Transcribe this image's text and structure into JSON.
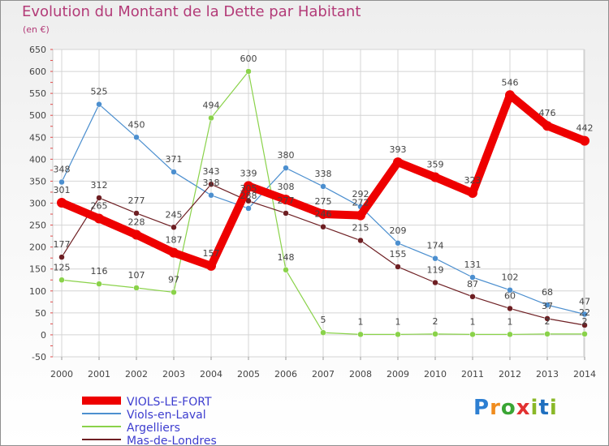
{
  "title": "Evolution du Montant de la Dette par Habitant",
  "unit": "(en €)",
  "logo_text": "Proxiti",
  "chart_data": {
    "type": "line",
    "title": "Evolution du Montant de la Dette par Habitant",
    "ylabel": "(en €)",
    "x": [
      "2000",
      "2001",
      "2002",
      "2003",
      "2004",
      "2005",
      "2006",
      "2007",
      "2008",
      "2009",
      "2010",
      "2011",
      "2012",
      "2013",
      "2014"
    ],
    "yticks": [
      -50,
      0,
      50,
      100,
      150,
      200,
      250,
      300,
      350,
      400,
      450,
      500,
      550,
      600,
      650
    ],
    "ylim": [
      -50,
      650
    ],
    "grid": true,
    "legend_position": "bottom-left",
    "series": [
      {
        "name": "VIOLS-LE-FORT",
        "color": "#ee0000",
        "values": [
          301,
          265,
          228,
          187,
          157,
          339,
          308,
          275,
          272,
          393,
          359,
          323,
          546,
          476,
          442
        ]
      },
      {
        "name": "Viols-en-Laval",
        "color": "#4c8fcf",
        "values": [
          348,
          525,
          450,
          371,
          318,
          288,
          380,
          338,
          292,
          209,
          174,
          131,
          102,
          68,
          47
        ]
      },
      {
        "name": "Argelliers",
        "color": "#8ad24a",
        "values": [
          125,
          116,
          107,
          97,
          494,
          600,
          148,
          5,
          1,
          1,
          2,
          1,
          1,
          2,
          2
        ]
      },
      {
        "name": "Mas-de-Londres",
        "color": "#6e1f23",
        "values": [
          177,
          312,
          277,
          245,
          343,
          305,
          277,
          246,
          215,
          155,
          119,
          87,
          60,
          37,
          22
        ]
      }
    ],
    "labels_shown": [
      [
        "301",
        "265",
        "228",
        "187",
        "157",
        "339",
        "308",
        "275",
        "272",
        "393",
        "359",
        "323",
        "546",
        "476",
        "442"
      ],
      [
        "348",
        "525",
        "450",
        "371",
        "318",
        "288",
        "380",
        "338",
        "292",
        "209",
        "174",
        "131",
        "102",
        "68",
        "47"
      ],
      [
        "125",
        "116",
        "107",
        "97",
        "494",
        "600",
        "148",
        "5",
        "1",
        "1",
        "2",
        "1",
        "1",
        "2",
        "2"
      ],
      [
        "177",
        "312",
        "277",
        "245",
        "343",
        "305",
        "277",
        "246",
        "215",
        "155",
        "119",
        "87",
        "60",
        "37",
        "22"
      ]
    ]
  }
}
